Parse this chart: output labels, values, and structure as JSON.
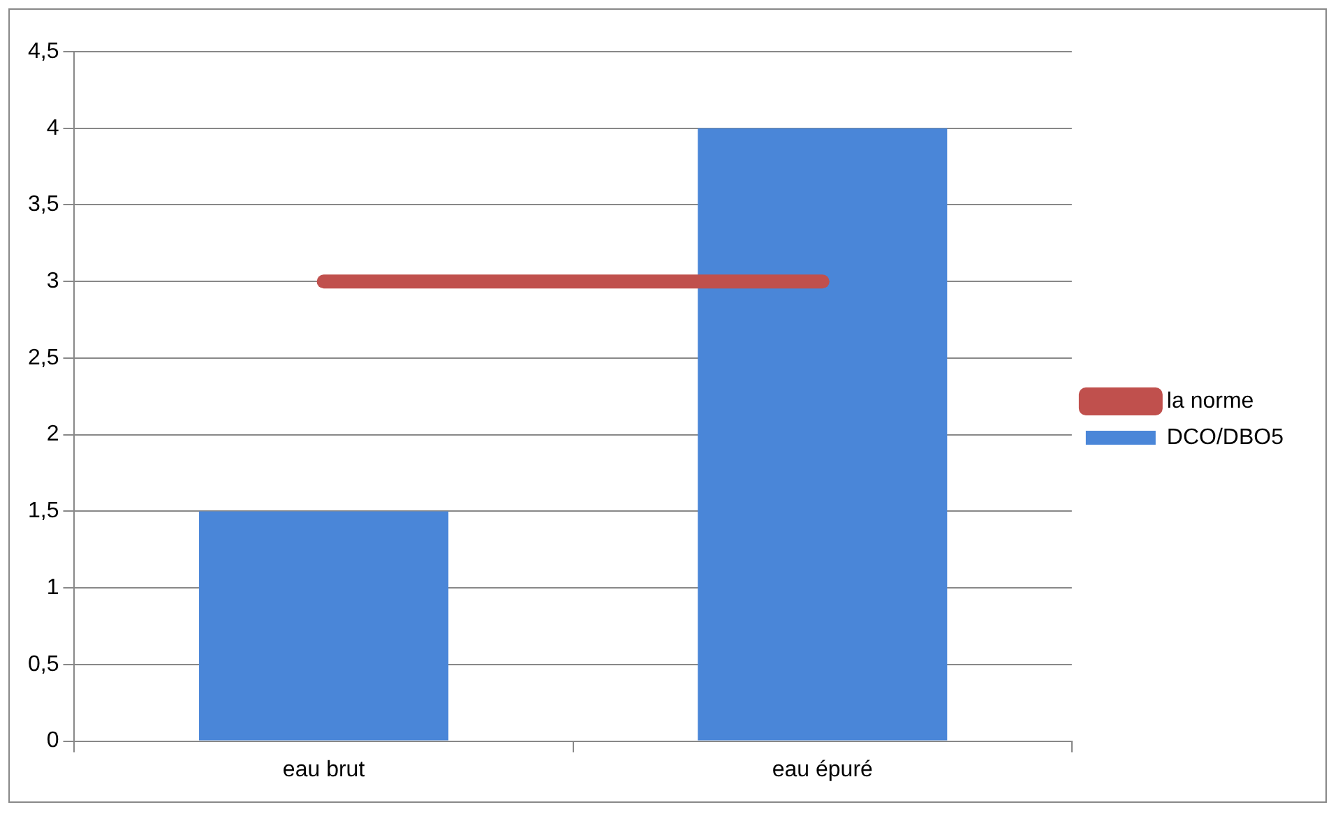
{
  "chart_data": {
    "type": "bar",
    "categories": [
      "eau brut",
      "eau épuré"
    ],
    "series": [
      {
        "name": "DCO/DBO5",
        "color": "#4a86d8",
        "values": [
          1.5,
          4
        ]
      },
      {
        "name": "la norme",
        "type": "line",
        "color": "#c0504d",
        "values": [
          3,
          3
        ]
      }
    ],
    "ylim": [
      0,
      4.5
    ],
    "yticks": [
      0,
      {
        "value": 0.5,
        "label": "0,5"
      },
      1,
      {
        "value": 1.5,
        "label": "1,5"
      },
      2,
      {
        "value": 2.5,
        "label": "2,5"
      },
      3,
      {
        "value": 3.5,
        "label": "3,5"
      },
      4,
      {
        "value": 4.5,
        "label": "4,5"
      }
    ],
    "grid": "y",
    "legend": "right",
    "marker": "none"
  }
}
